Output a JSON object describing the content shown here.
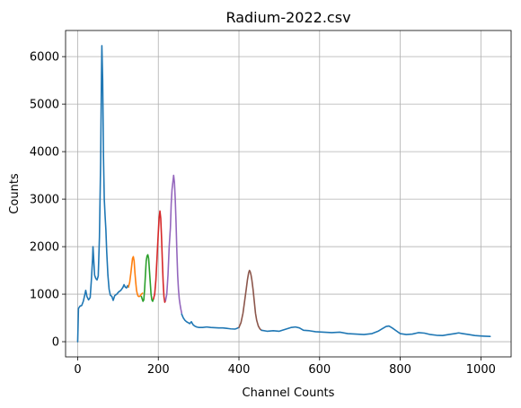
{
  "chart_data": {
    "type": "line",
    "title": "Radium-2022.csv",
    "xlabel": "Channel Counts",
    "ylabel": "Counts",
    "xlim": [
      -30,
      1075
    ],
    "ylim": [
      -320,
      6550
    ],
    "x_ticks": [
      0,
      200,
      400,
      600,
      800,
      1000
    ],
    "y_ticks": [
      0,
      1000,
      2000,
      3000,
      4000,
      5000,
      6000
    ],
    "grid": true,
    "series": [
      {
        "color": "#1f77b4",
        "points": [
          [
            0,
            0
          ],
          [
            2,
            700
          ],
          [
            6,
            750
          ],
          [
            10,
            760
          ],
          [
            14,
            850
          ],
          [
            18,
            1000
          ],
          [
            20,
            1080
          ],
          [
            23,
            950
          ],
          [
            27,
            880
          ],
          [
            31,
            930
          ],
          [
            34,
            1300
          ],
          [
            37,
            1750
          ],
          [
            38,
            2000
          ],
          [
            40,
            1700
          ],
          [
            42,
            1400
          ],
          [
            45,
            1330
          ],
          [
            48,
            1300
          ],
          [
            51,
            1380
          ],
          [
            54,
            2200
          ],
          [
            57,
            3800
          ],
          [
            59,
            5600
          ],
          [
            60,
            6230
          ],
          [
            62,
            5500
          ],
          [
            64,
            3900
          ],
          [
            66,
            3000
          ],
          [
            68,
            2650
          ],
          [
            70,
            2350
          ],
          [
            72,
            1900
          ],
          [
            75,
            1400
          ],
          [
            78,
            1100
          ],
          [
            81,
            980
          ],
          [
            85,
            950
          ],
          [
            88,
            870
          ],
          [
            92,
            970
          ],
          [
            97,
            1000
          ],
          [
            102,
            1050
          ],
          [
            107,
            1080
          ],
          [
            112,
            1140
          ],
          [
            115,
            1200
          ],
          [
            118,
            1150
          ],
          [
            121,
            1130
          ],
          [
            124,
            1180
          ],
          [
            126,
            1150
          ]
        ]
      },
      {
        "color": "#ff7f0e",
        "points": [
          [
            126,
            1150
          ],
          [
            129,
            1250
          ],
          [
            132,
            1450
          ],
          [
            134,
            1600
          ],
          [
            136,
            1750
          ],
          [
            138,
            1790
          ],
          [
            140,
            1700
          ],
          [
            142,
            1450
          ],
          [
            144,
            1250
          ],
          [
            146,
            1080
          ],
          [
            148,
            1000
          ],
          [
            150,
            960
          ],
          [
            152,
            950
          ],
          [
            155,
            960
          ],
          [
            158,
            1000
          ],
          [
            161,
            1020
          ]
        ]
      },
      {
        "color": "#2ca02c",
        "points": [
          [
            158,
            950
          ],
          [
            160,
            900
          ],
          [
            162,
            850
          ],
          [
            164,
            880
          ],
          [
            166,
            1100
          ],
          [
            168,
            1400
          ],
          [
            170,
            1700
          ],
          [
            172,
            1800
          ],
          [
            174,
            1830
          ],
          [
            176,
            1750
          ],
          [
            178,
            1500
          ],
          [
            180,
            1250
          ],
          [
            182,
            1000
          ],
          [
            184,
            880
          ],
          [
            186,
            850
          ],
          [
            188,
            900
          ]
        ]
      },
      {
        "color": "#d62728",
        "points": [
          [
            188,
            900
          ],
          [
            191,
            1000
          ],
          [
            194,
            1300
          ],
          [
            197,
            1800
          ],
          [
            200,
            2300
          ],
          [
            202,
            2600
          ],
          [
            204,
            2750
          ],
          [
            206,
            2600
          ],
          [
            208,
            2200
          ],
          [
            210,
            1700
          ],
          [
            212,
            1250
          ],
          [
            214,
            950
          ],
          [
            216,
            830
          ],
          [
            218,
            870
          ]
        ]
      },
      {
        "color": "#9467bd",
        "points": [
          [
            218,
            870
          ],
          [
            221,
            1000
          ],
          [
            224,
            1400
          ],
          [
            227,
            2000
          ],
          [
            230,
            2400
          ],
          [
            232,
            2900
          ],
          [
            234,
            3200
          ],
          [
            236,
            3350
          ],
          [
            238,
            3500
          ],
          [
            240,
            3350
          ],
          [
            242,
            3000
          ],
          [
            244,
            2500
          ],
          [
            246,
            1900
          ],
          [
            248,
            1400
          ],
          [
            250,
            1100
          ],
          [
            252,
            900
          ],
          [
            254,
            780
          ],
          [
            256,
            680
          ],
          [
            258,
            600
          ]
        ]
      },
      {
        "color": "#1f77b4",
        "points": [
          [
            258,
            580
          ],
          [
            262,
            500
          ],
          [
            266,
            450
          ],
          [
            270,
            420
          ],
          [
            274,
            400
          ],
          [
            278,
            380
          ],
          [
            282,
            420
          ],
          [
            286,
            360
          ],
          [
            290,
            330
          ],
          [
            295,
            310
          ],
          [
            300,
            300
          ],
          [
            310,
            300
          ],
          [
            320,
            310
          ],
          [
            330,
            300
          ],
          [
            340,
            295
          ],
          [
            350,
            290
          ],
          [
            360,
            290
          ],
          [
            370,
            280
          ],
          [
            380,
            270
          ],
          [
            390,
            265
          ],
          [
            395,
            280
          ],
          [
            400,
            300
          ]
        ]
      },
      {
        "color": "#8c564b",
        "points": [
          [
            400,
            300
          ],
          [
            405,
            400
          ],
          [
            410,
            600
          ],
          [
            414,
            850
          ],
          [
            418,
            1100
          ],
          [
            421,
            1300
          ],
          [
            424,
            1450
          ],
          [
            426,
            1500
          ],
          [
            428,
            1470
          ],
          [
            430,
            1400
          ],
          [
            432,
            1300
          ],
          [
            435,
            1100
          ],
          [
            438,
            850
          ],
          [
            441,
            600
          ],
          [
            444,
            450
          ],
          [
            448,
            330
          ],
          [
            452,
            270
          ],
          [
            456,
            240
          ]
        ]
      },
      {
        "color": "#1f77b4",
        "points": [
          [
            456,
            240
          ],
          [
            470,
            220
          ],
          [
            485,
            230
          ],
          [
            500,
            220
          ],
          [
            515,
            260
          ],
          [
            530,
            300
          ],
          [
            540,
            310
          ],
          [
            550,
            290
          ],
          [
            560,
            240
          ],
          [
            575,
            230
          ],
          [
            590,
            210
          ],
          [
            610,
            200
          ],
          [
            630,
            190
          ],
          [
            650,
            200
          ],
          [
            670,
            170
          ],
          [
            690,
            160
          ],
          [
            710,
            150
          ],
          [
            730,
            170
          ],
          [
            745,
            220
          ],
          [
            755,
            270
          ],
          [
            765,
            320
          ],
          [
            772,
            330
          ],
          [
            780,
            290
          ],
          [
            790,
            230
          ],
          [
            800,
            170
          ],
          [
            815,
            150
          ],
          [
            830,
            160
          ],
          [
            845,
            190
          ],
          [
            860,
            180
          ],
          [
            875,
            150
          ],
          [
            890,
            135
          ],
          [
            905,
            130
          ],
          [
            920,
            150
          ],
          [
            935,
            170
          ],
          [
            945,
            185
          ],
          [
            955,
            170
          ],
          [
            970,
            150
          ],
          [
            985,
            130
          ],
          [
            1000,
            120
          ],
          [
            1010,
            115
          ],
          [
            1023,
            110
          ]
        ]
      }
    ]
  }
}
